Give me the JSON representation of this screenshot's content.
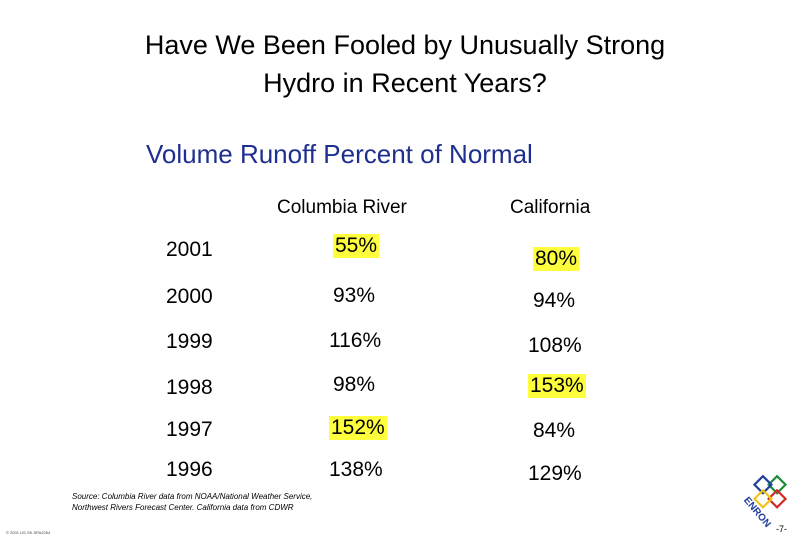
{
  "slide": {
    "title_line1": "Have We Been Fooled by Unusually Strong",
    "title_line2": "Hydro in Recent Years?",
    "subtitle": "Volume Runoff Percent of Normal"
  },
  "table": {
    "headers": [
      "Columbia River",
      "California"
    ],
    "rows": [
      {
        "year": "2001",
        "columbia": "55%",
        "california": "80%",
        "hl_columbia": true,
        "hl_california": true
      },
      {
        "year": "2000",
        "columbia": "93%",
        "california": "94%",
        "hl_columbia": false,
        "hl_california": false
      },
      {
        "year": "1999",
        "columbia": "116%",
        "california": "108%",
        "hl_columbia": false,
        "hl_california": false
      },
      {
        "year": "1998",
        "columbia": "98%",
        "california": "153%",
        "hl_columbia": false,
        "hl_california": true
      },
      {
        "year": "1997",
        "columbia": "152%",
        "california": "84%",
        "hl_columbia": true,
        "hl_california": false
      },
      {
        "year": "1996",
        "columbia": "138%",
        "california": "129%",
        "hl_columbia": false,
        "hl_california": false
      }
    ]
  },
  "footer": {
    "source_line1": "Source: Columbia River data from NOAA/National Weather Service,",
    "source_line2": "Northwest Rivers Forecast Center. California data from CDWR",
    "copyright": "© 2001 US-SK-SPA2264",
    "page_number": "-7-",
    "logo_text": "ENRON"
  },
  "colors": {
    "highlight": "#fefe3c",
    "subtitle": "#1f2f8f",
    "logo_green": "#1e8c3a",
    "logo_blue": "#1f3f9f",
    "logo_red": "#d22a2a",
    "logo_yellow": "#f2c416"
  }
}
